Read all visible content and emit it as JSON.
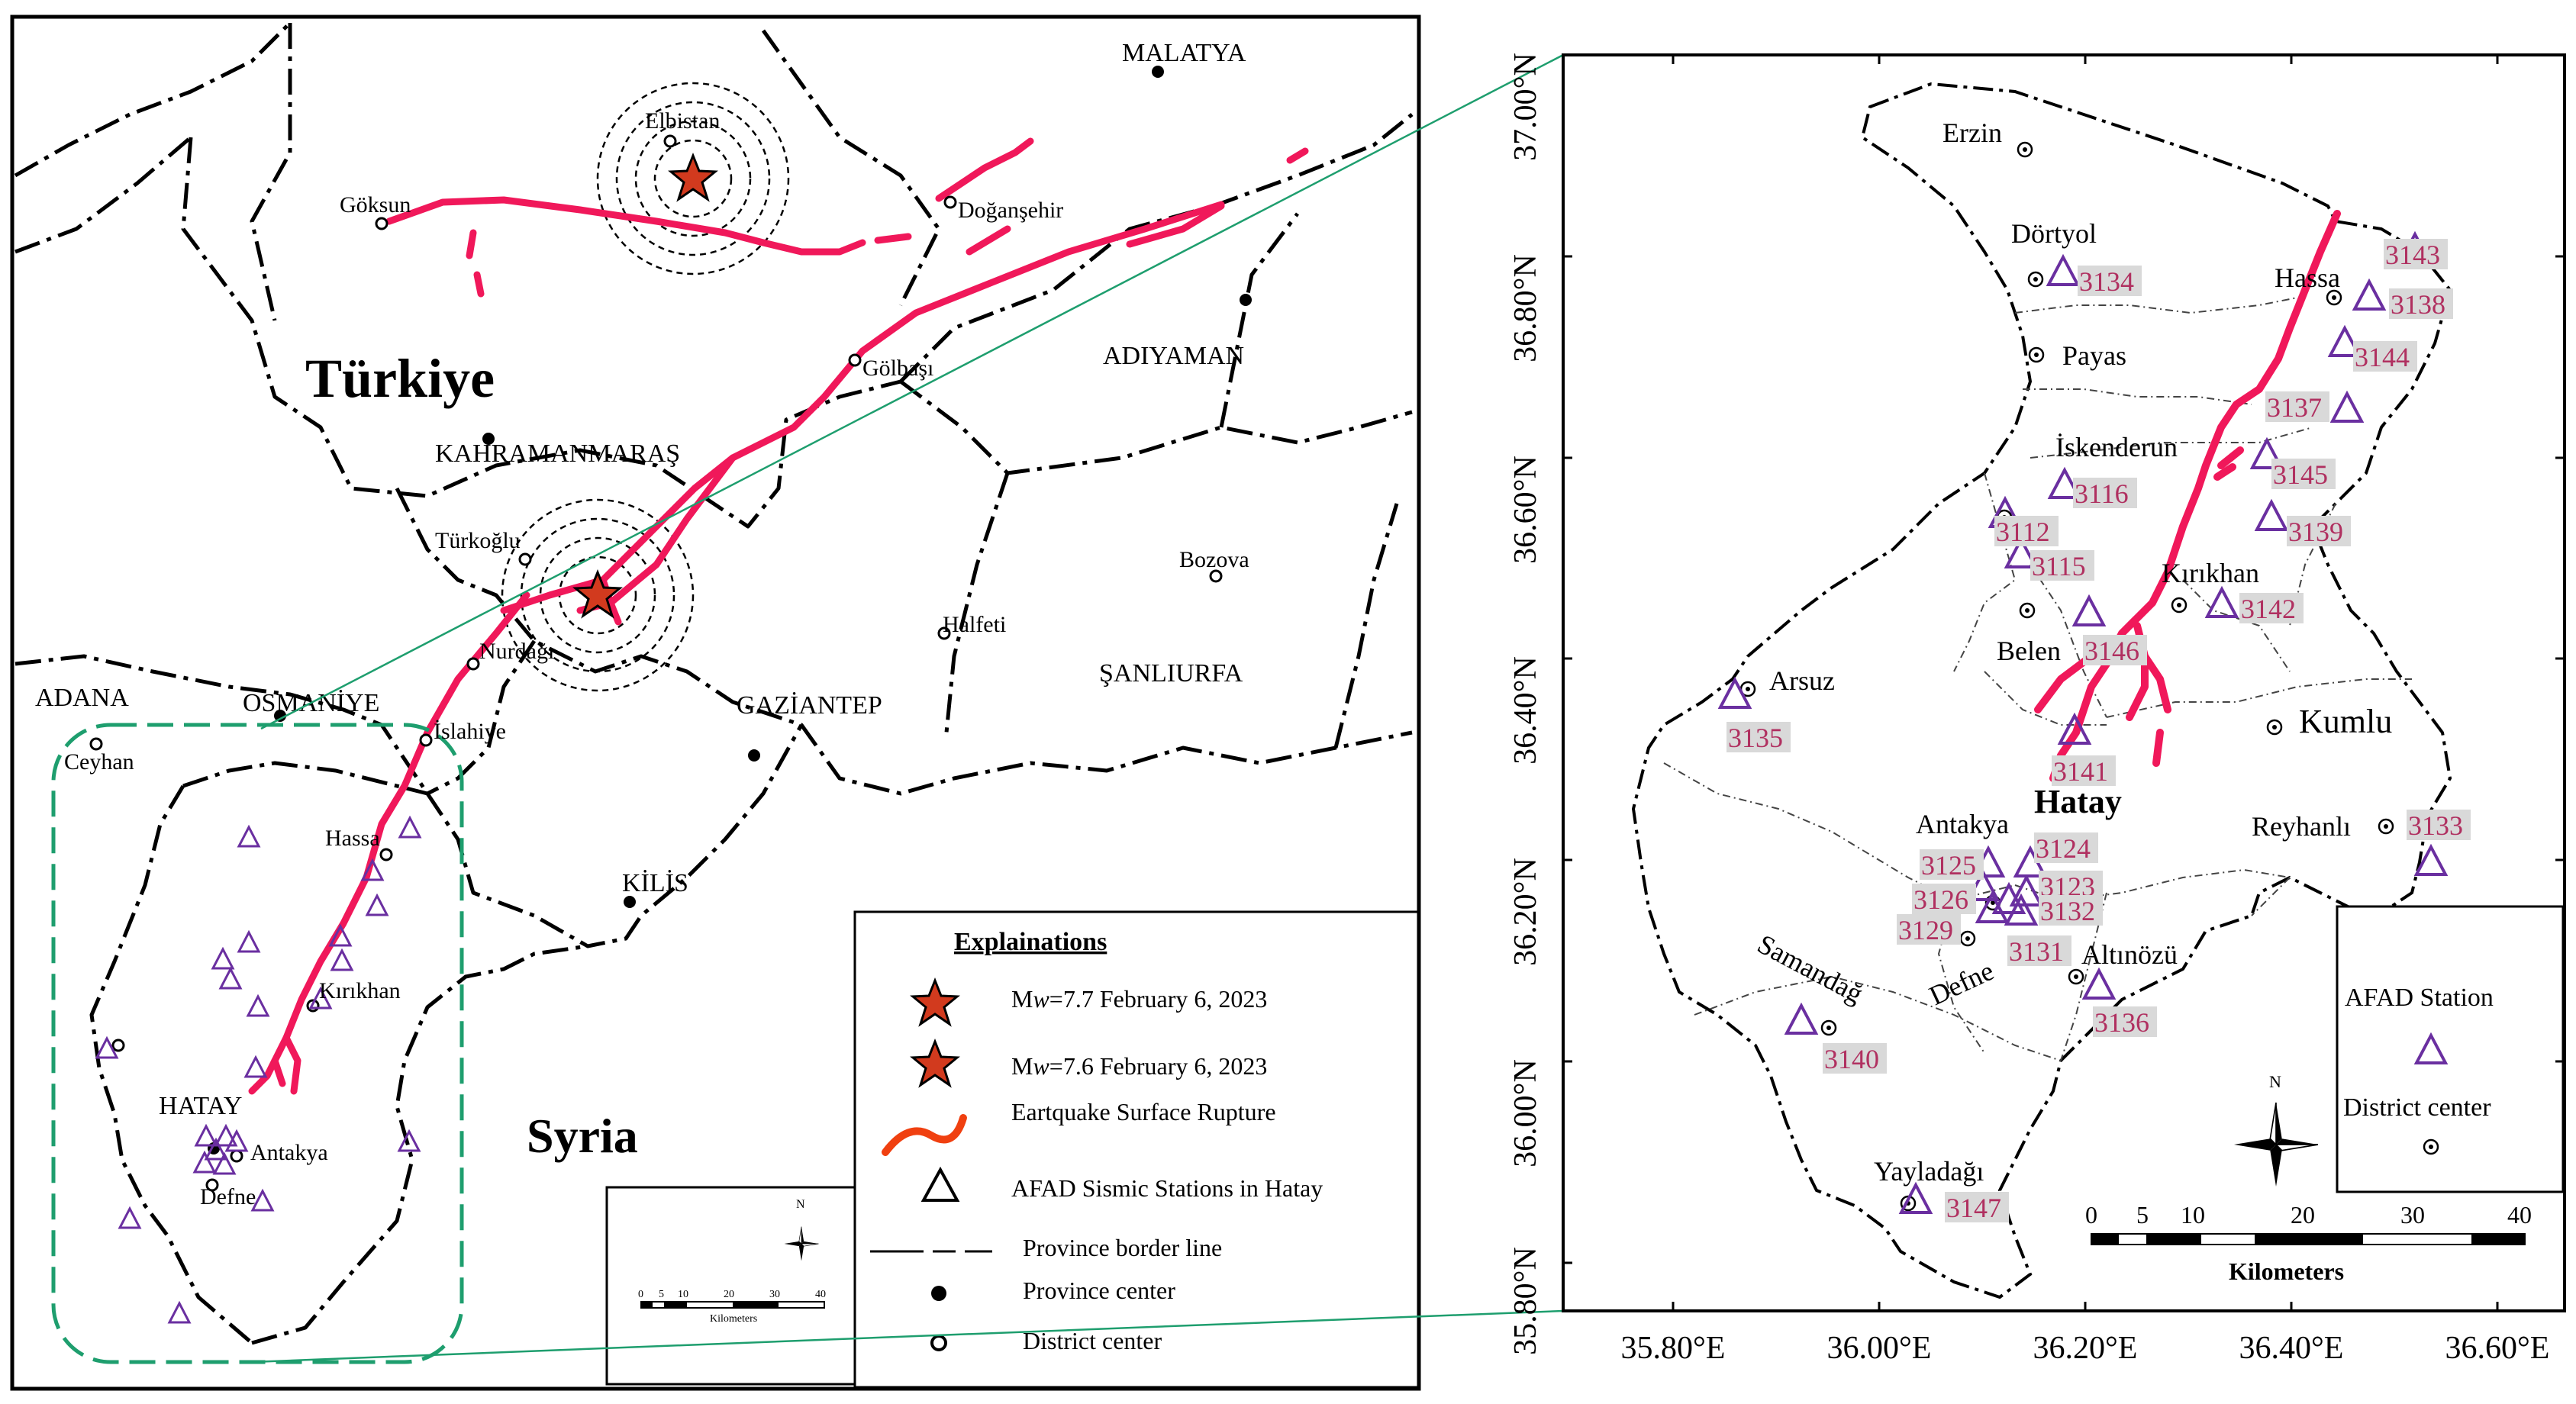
{
  "left_map": {
    "country_labels": {
      "turkiye": "Türkiye",
      "syria": "Syria"
    },
    "province_labels": {
      "malatya": "MALATYA",
      "adiyaman": "ADIYAMAN",
      "kahramanmaras": "KAHRAMANMARAŞ",
      "gaziantep": "GAZİANTEP",
      "sanliurfa": "ŞANLIURFA",
      "adana": "ADANA",
      "osmaniye": "OSMANİYE",
      "kilis": "KİLİS",
      "hatay": "HATAY"
    },
    "district_labels": {
      "elbistan": "Elbistan",
      "goksun": "Göksun",
      "dogansehir": "Doğanşehir",
      "golbasi": "Gölbaşı",
      "turkoglu": "Türkoğlu",
      "nurdagi": "Nurdağı",
      "islahiye": "İslahiye",
      "halfeti": "Halfeti",
      "bozova": "Bozova",
      "ceyhan": "Ceyhan",
      "hassa": "Hassa",
      "kirikhan": "Kırıkhan",
      "antakya": "Antakya",
      "defne": "Defne"
    },
    "legend": {
      "title": "Explainations",
      "mw77_prefix": "M",
      "mw77_italic": "w",
      "mw77_suffix": "=7.7 February 6, 2023",
      "mw76_prefix": "M",
      "mw76_italic": "w",
      "mw76_suffix": "=7.6 February 6, 2023",
      "rupture": "Eartquake Surface Rupture",
      "stations": "AFAD Sismic Stations in Hatay",
      "border": "Province border line",
      "province_center": "Province center",
      "district_center": "District center"
    },
    "scalebar": {
      "ticks": [
        "0",
        "5",
        "10",
        "20",
        "30",
        "40"
      ],
      "unit": "Kilometers"
    },
    "north": "N"
  },
  "right_map": {
    "y_axis": [
      "37.00°N",
      "36.80°N",
      "36.60°N",
      "36.40°N",
      "36.20°N",
      "36.00°N",
      "35.80°N"
    ],
    "x_axis": [
      "35.80°E",
      "36.00°E",
      "36.20°E",
      "36.40°E",
      "36.60°E"
    ],
    "province_label": "Hatay",
    "district_labels": {
      "erzin": "Erzin",
      "dortyol": "Dörtyol",
      "payas": "Payas",
      "hassa": "Hassa",
      "iskenderun": "İskenderun",
      "kirikhan": "Kırıkhan",
      "belen": "Belen",
      "arsuz": "Arsuz",
      "kumlu": "Kumlu",
      "antakya": "Antakya",
      "reyhanli": "Reyhanlı",
      "samandag": "Samandağ",
      "defne": "Defne",
      "altinozu": "Altınözü",
      "yayladagi": "Yayladağı"
    },
    "stations": [
      "3143",
      "3138",
      "3134",
      "3144",
      "3137",
      "3145",
      "3116",
      "3139",
      "3112",
      "3115",
      "3142",
      "3146",
      "3135",
      "3141",
      "3133",
      "3124",
      "3125",
      "3123",
      "3126",
      "3132",
      "3129",
      "3131",
      "3136",
      "3140",
      "3147"
    ],
    "legend": {
      "station": "AFAD Station",
      "district": "District center"
    },
    "scalebar": {
      "ticks": [
        "0",
        "5",
        "10",
        "20",
        "30",
        "40"
      ],
      "unit": "Kilometers"
    },
    "north": "N"
  },
  "colors": {
    "rupture": "#f0185a",
    "station": "#6a2fa0",
    "station_label": "#b03060",
    "label_bg": "#d9d9d9",
    "star": "#d23a1e",
    "inset_border": "#1e9e6e"
  }
}
